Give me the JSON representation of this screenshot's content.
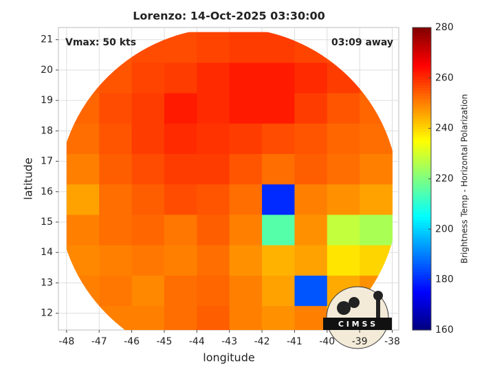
{
  "chart_data": {
    "type": "heatmap",
    "title": "Lorenzo: 14-Oct-2025 03:30:00",
    "annotations": [
      "Vmax: 50 kts",
      "03:09 away"
    ],
    "logo_text": "C I M S S",
    "xlabel": "longitude",
    "ylabel": "latitude",
    "x": [
      -47.5,
      -46.5,
      -45.5,
      -44.5,
      -43.5,
      -42.5,
      -41.5,
      -40.5,
      -39.5,
      -38.5
    ],
    "y": [
      11.75,
      12.75,
      13.75,
      14.75,
      15.75,
      16.75,
      17.75,
      18.75,
      19.75,
      20.75
    ],
    "z": [
      [
        250,
        250,
        250,
        252,
        254,
        250,
        248,
        250,
        240,
        245
      ],
      [
        250,
        251,
        249,
        252,
        253,
        250,
        246,
        185,
        245,
        248
      ],
      [
        249,
        250,
        251,
        250,
        252,
        248,
        244,
        246,
        238,
        240
      ],
      [
        250,
        252,
        253,
        251,
        254,
        250,
        215,
        248,
        228,
        225
      ],
      [
        246,
        252,
        254,
        256,
        255,
        252,
        180,
        250,
        248,
        246
      ],
      [
        250,
        254,
        256,
        258,
        258,
        255,
        252,
        254,
        252,
        250
      ],
      [
        252,
        255,
        258,
        260,
        259,
        258,
        256,
        255,
        253,
        252
      ],
      [
        253,
        256,
        258,
        262,
        260,
        262,
        262,
        258,
        255,
        253
      ],
      [
        254,
        255,
        257,
        258,
        260,
        262,
        262,
        260,
        258,
        255
      ],
      [
        255,
        255,
        256,
        256,
        257,
        258,
        258,
        257,
        256,
        255
      ]
    ],
    "xlim": [
      -48.25,
      -37.8
    ],
    "ylim": [
      11.45,
      21.4
    ],
    "xticks": [
      -48,
      -47,
      -46,
      -45,
      -44,
      -43,
      -42,
      -41,
      -40,
      -39,
      -38
    ],
    "yticks": [
      12,
      13,
      14,
      15,
      16,
      17,
      18,
      19,
      20,
      21
    ],
    "grid": true,
    "colorbar": {
      "label": "Brightness Temp - Horizontal Polarization",
      "lim": [
        160,
        280
      ],
      "ticks": [
        160,
        180,
        200,
        220,
        240,
        260,
        280
      ],
      "colormap": "jet"
    }
  }
}
